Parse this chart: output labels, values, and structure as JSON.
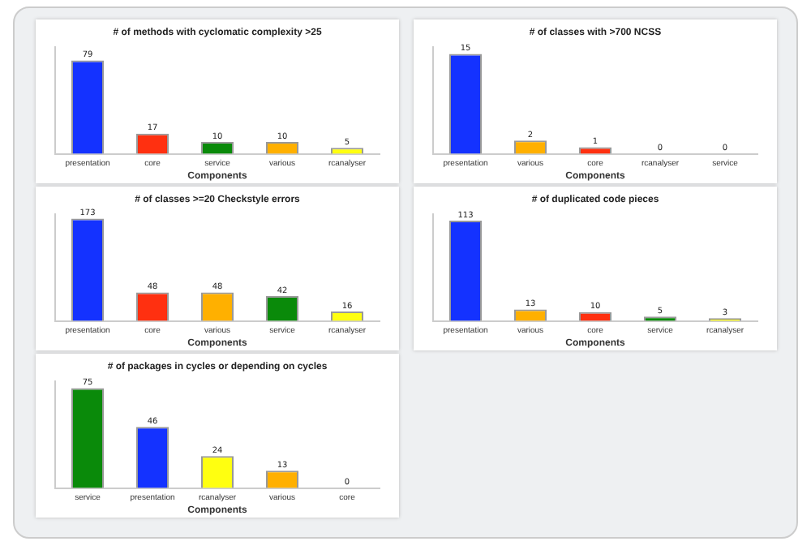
{
  "chart_data": [
    {
      "type": "bar",
      "title": "# of methods with cyclomatic complexity >25",
      "xlabel": "Components",
      "categories": [
        "presentation",
        "core",
        "service",
        "various",
        "rcanalyser"
      ],
      "values": [
        79,
        17,
        10,
        10,
        5
      ],
      "colors": [
        "#1432ff",
        "#ff3010",
        "#0a8a0a",
        "#ffb000",
        "#ffff10"
      ],
      "data_labels": true,
      "tick_labels": "x"
    },
    {
      "type": "bar",
      "title": "# of classes with >700 NCSS",
      "xlabel": "Components",
      "categories": [
        "presentation",
        "various",
        "core",
        "rcanalyser",
        "service"
      ],
      "values": [
        15,
        2,
        1,
        0,
        0
      ],
      "colors": [
        "#1432ff",
        "#ffb000",
        "#ff3010",
        "#ffff10",
        "#0a8a0a"
      ],
      "data_labels": true,
      "tick_labels": "x"
    },
    {
      "type": "bar",
      "title": "# of classes >=20 Checkstyle errors",
      "xlabel": "Components",
      "categories": [
        "presentation",
        "core",
        "various",
        "service",
        "rcanalyser"
      ],
      "values": [
        173,
        48,
        48,
        42,
        16
      ],
      "colors": [
        "#1432ff",
        "#ff3010",
        "#ffb000",
        "#0a8a0a",
        "#ffff10"
      ],
      "data_labels": true,
      "tick_labels": "x"
    },
    {
      "type": "bar",
      "title": "# of duplicated code pieces",
      "xlabel": "Components",
      "categories": [
        "presentation",
        "various",
        "core",
        "service",
        "rcanalyser"
      ],
      "values": [
        113,
        13,
        10,
        5,
        3
      ],
      "colors": [
        "#1432ff",
        "#ffb000",
        "#ff3010",
        "#0a8a0a",
        "#ffff10"
      ],
      "data_labels": true,
      "tick_labels": "x"
    },
    {
      "type": "bar",
      "title": "# of packages in cycles or depending on cycles",
      "xlabel": "Components",
      "categories": [
        "service",
        "presentation",
        "rcanalyser",
        "various",
        "core"
      ],
      "values": [
        75,
        46,
        24,
        13,
        0
      ],
      "colors": [
        "#0a8a0a",
        "#1432ff",
        "#ffff10",
        "#ffb000",
        "#ff3010"
      ],
      "data_labels": true,
      "tick_labels": "x"
    }
  ]
}
